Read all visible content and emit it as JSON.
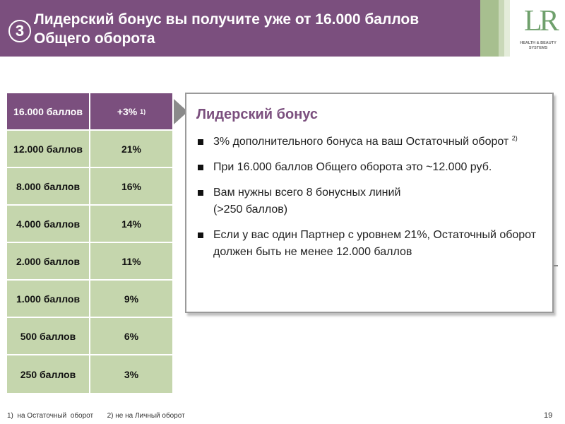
{
  "header": {
    "number": "3",
    "title_line1": "Лидерский бонус вы получите уже от 16.000 баллов",
    "title_line2": "Общего оборота"
  },
  "logo": {
    "mark": "LR",
    "subtitle_line1": "HEALTH & BEAUTY",
    "subtitle_line2": "SYSTEMS"
  },
  "table": {
    "rows": [
      {
        "points": "16.000 баллов",
        "bonus": "+3%",
        "sup": "1)"
      },
      {
        "points": "12.000 баллов",
        "bonus": "21%"
      },
      {
        "points": "8.000 баллов",
        "bonus": "16%"
      },
      {
        "points": "4.000 баллов",
        "bonus": "14%"
      },
      {
        "points": "2.000 баллов",
        "bonus": "11%"
      },
      {
        "points": "1.000 баллов",
        "bonus": "9%"
      },
      {
        "points": "500 баллов",
        "bonus": "6%"
      },
      {
        "points": "250 баллов",
        "bonus": "3%"
      }
    ]
  },
  "info_box": {
    "heading": "Лидерский бонус",
    "bullets": [
      {
        "text": "3% дополнительного бонуса на ваш Остаточный оборот",
        "sup": "2)"
      },
      {
        "text": "При 16.000 баллов Общего оборота это ~12.000 руб."
      },
      {
        "text": "Вам нужны всего 8 бонусных линий",
        "text2": "(>250 баллов)"
      },
      {
        "text": "Если у вас один Партнер с уровнем 21%, Остаточный оборот должен быть не менее 12.000 баллов"
      }
    ]
  },
  "footer": {
    "note1": "1)  на Остаточный  оборот",
    "note2": "2) не на Личный оборот",
    "page": "19"
  },
  "colors": {
    "accent": "#7b4f7e",
    "table_green": "#c5d6ad",
    "logo_green": "#6fa06c"
  }
}
